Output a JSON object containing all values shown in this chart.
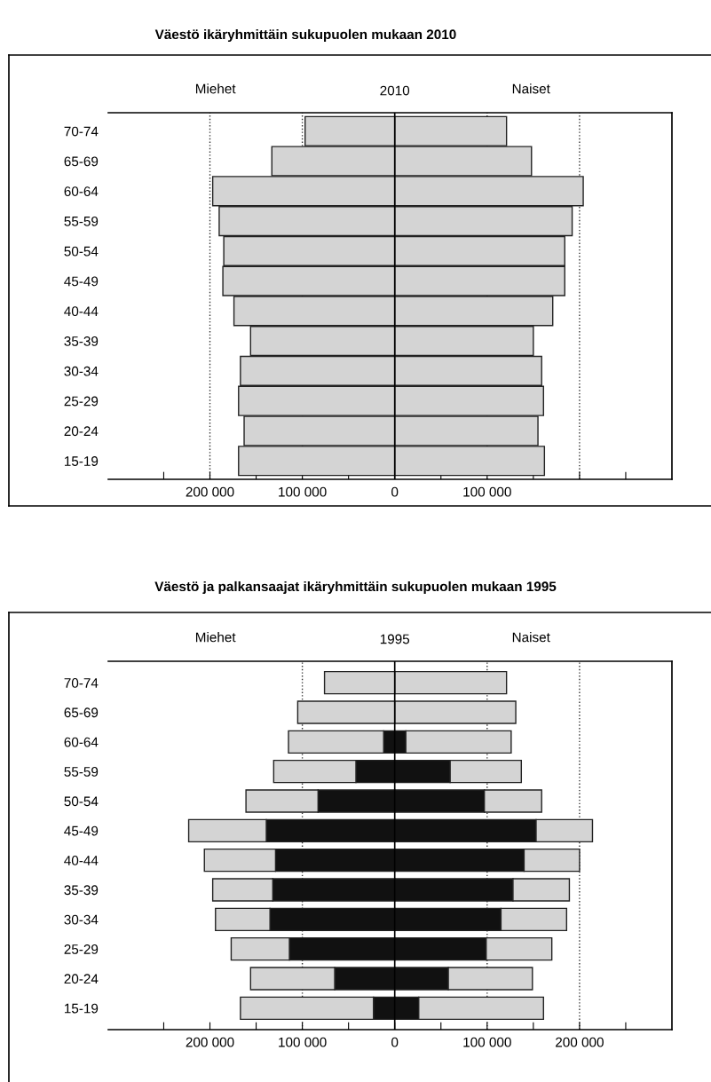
{
  "chart_data": [
    {
      "type": "bar",
      "orientation": "horizontal",
      "stacked": true,
      "title": "Väestö ikäryhmittäin sukupuolen mukaan 2010",
      "subtitle": "2010",
      "annotations": [
        "Miehet",
        "Naiset"
      ],
      "categories": [
        "70-74",
        "65-69",
        "60-64",
        "55-59",
        "50-54",
        "45-49",
        "40-44",
        "35-39",
        "30-34",
        "25-29",
        "20-24",
        "15-19"
      ],
      "series": [
        {
          "color": "#d4d4d4",
          "values": [
            -97000,
            -133000,
            -197000,
            -190000,
            -185000,
            -186000,
            -174000,
            -156000,
            -167000,
            -169000,
            -163000,
            -169000
          ]
        },
        {
          "color": "#d4d4d4",
          "values": [
            121000,
            148000,
            204000,
            192000,
            184000,
            184000,
            171000,
            150000,
            159000,
            161000,
            155000,
            162000
          ]
        }
      ],
      "xlim": [
        -310000,
        300000
      ],
      "xticks": [
        {
          "value": -250000,
          "label": null
        },
        {
          "value": -200000,
          "label": "200 000"
        },
        {
          "value": -150000,
          "label": null
        },
        {
          "value": -100000,
          "label": "100 000"
        },
        {
          "value": -50000,
          "label": null
        },
        0,
        {
          "value": 50000,
          "label": null
        },
        {
          "value": 100000,
          "label": "100 000"
        },
        {
          "value": 150000,
          "label": null
        },
        {
          "value": 200000,
          "label": null
        },
        {
          "value": 250000,
          "label": null
        }
      ],
      "ref_lines": [
        {
          "axis": "x",
          "value": -200000,
          "line_style": "dotted",
          "color": "#333333"
        },
        {
          "axis": "x",
          "value": -100000,
          "line_style": "dotted",
          "color": "#333333"
        },
        {
          "axis": "x",
          "value": 100000,
          "line_style": "dotted",
          "color": "#333333"
        },
        {
          "axis": "x",
          "value": 200000,
          "line_style": "dotted",
          "color": "#333333"
        },
        {
          "axis": "x",
          "value": 0,
          "line_style": "solid",
          "color": "#000000"
        }
      ]
    },
    {
      "type": "bar",
      "orientation": "horizontal",
      "stacked": true,
      "title": "Väestö ja palkansaajat ikäryhmittäin sukupuolen mukaan 1995",
      "subtitle": "1995",
      "annotations": [
        "Miehet",
        "Naiset"
      ],
      "categories": [
        "70-74",
        "65-69",
        "60-64",
        "55-59",
        "50-54",
        "45-49",
        "40-44",
        "35-39",
        "30-34",
        "25-29",
        "20-24",
        "15-19"
      ],
      "series": [
        {
          "color": "#111111",
          "values": [
            null,
            null,
            -12000,
            -42000,
            -83000,
            -139000,
            -129000,
            -132000,
            -135000,
            -114000,
            -65000,
            -23000
          ]
        },
        {
          "color": "#111111",
          "values": [
            null,
            null,
            12000,
            60000,
            97000,
            153000,
            140000,
            128000,
            115000,
            99000,
            58000,
            26000
          ]
        },
        {
          "color": "#d4d4d4",
          "values": [
            -76000,
            -105000,
            -103000,
            -89000,
            -78000,
            -84000,
            -77000,
            -65000,
            -59000,
            -63000,
            -91000,
            -144000
          ]
        },
        {
          "color": "#d4d4d4",
          "values": [
            121000,
            131000,
            114000,
            77000,
            62000,
            61000,
            60000,
            61000,
            71000,
            71000,
            91000,
            135000
          ]
        }
      ],
      "xlim": [
        -310000,
        300000
      ],
      "xticks": [
        {
          "value": -250000,
          "label": null
        },
        {
          "value": -200000,
          "label": "200 000"
        },
        {
          "value": -150000,
          "label": null
        },
        {
          "value": -100000,
          "label": "100 000"
        },
        {
          "value": -50000,
          "label": null
        },
        0,
        {
          "value": 50000,
          "label": null
        },
        {
          "value": 100000,
          "label": "100 000"
        },
        {
          "value": 150000,
          "label": null
        },
        {
          "value": 200000,
          "label": "200 000"
        },
        {
          "value": 250000,
          "label": null
        }
      ],
      "ref_lines": [
        {
          "axis": "x",
          "value": -100000,
          "line_style": "dotted",
          "color": "#333333"
        },
        {
          "axis": "x",
          "value": 100000,
          "line_style": "dotted",
          "color": "#333333"
        },
        {
          "axis": "x",
          "value": 200000,
          "line_style": "dotted",
          "color": "#333333"
        },
        {
          "axis": "x",
          "value": 0,
          "line_style": "solid",
          "color": "#000000"
        }
      ]
    }
  ]
}
